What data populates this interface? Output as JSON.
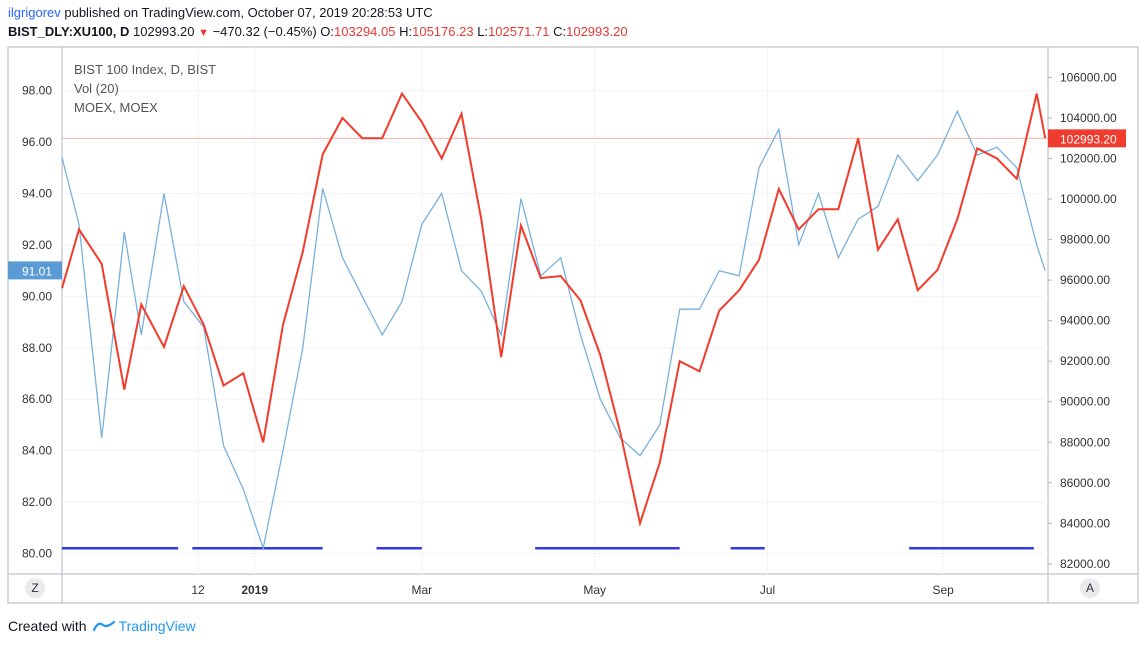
{
  "header": {
    "author": "ilgrigorev",
    "published_text": " published on TradingView.com, October 07, 2019 20:28:53 UTC",
    "symbol": "BIST_DLY:XU100, D",
    "last": "102993.20",
    "change": "−470.32 (−0.45%)",
    "open_label": "O:",
    "open": "103294.05",
    "high_label": "H:",
    "high": "105176.23",
    "low_label": "L:",
    "low": "102571.71",
    "close_label": "C:",
    "close": "102993.20"
  },
  "legend": [
    "BIST 100 Index, D, BIST",
    "Vol (20)",
    "MOEX, MOEX"
  ],
  "footer": {
    "created_with": "Created with",
    "brand": "TradingView"
  },
  "corner_buttons": {
    "left": "Z",
    "right": "A"
  },
  "colors": {
    "bist": "#f23b2a",
    "moex": "#7ab0dc",
    "volume": "#2f39e6",
    "price_line": "#f5b5ad",
    "price_label_bg": "#f03b2f",
    "left_label_bg": "#5b9bd5"
  },
  "chart_data": {
    "type": "line",
    "x_tick_labels": [
      "12",
      "2019",
      "Mar",
      "May",
      "Jul",
      "Sep"
    ],
    "left_axis": {
      "ylim": [
        79.2,
        99.7
      ],
      "ticks": [
        "98.00",
        "96.00",
        "94.00",
        "92.00",
        "90.00",
        "88.00",
        "86.00",
        "84.00",
        "82.00",
        "80.00"
      ],
      "current_label": "91.01"
    },
    "right_axis": {
      "ylim": [
        81500,
        107500
      ],
      "ticks": [
        "106000.00",
        "104000.00",
        "102000.00",
        "100000.00",
        "98000.00",
        "96000.00",
        "94000.00",
        "92000.00",
        "90000.00",
        "88000.00",
        "86000.00",
        "84000.00",
        "82000.00"
      ],
      "current_label": "102993.20"
    },
    "x_range": [
      "2018-10-25",
      "2019-10-08"
    ],
    "series": [
      {
        "name": "BIST 100 Index, D, BIST",
        "axis": "right",
        "x": [
          "2018-10-25",
          "2018-10-31",
          "2018-11-08",
          "2018-11-16",
          "2018-11-22",
          "2018-11-30",
          "2018-12-07",
          "2018-12-14",
          "2018-12-21",
          "2018-12-28",
          "2019-01-04",
          "2019-01-11",
          "2019-01-18",
          "2019-01-25",
          "2019-02-01",
          "2019-02-08",
          "2019-02-15",
          "2019-02-22",
          "2019-03-01",
          "2019-03-08",
          "2019-03-15",
          "2019-03-22",
          "2019-03-29",
          "2019-04-05",
          "2019-04-12",
          "2019-04-19",
          "2019-04-26",
          "2019-05-03",
          "2019-05-10",
          "2019-05-17",
          "2019-05-24",
          "2019-05-31",
          "2019-06-07",
          "2019-06-14",
          "2019-06-21",
          "2019-06-28",
          "2019-07-05",
          "2019-07-12",
          "2019-07-19",
          "2019-07-26",
          "2019-08-02",
          "2019-08-09",
          "2019-08-16",
          "2019-08-23",
          "2019-08-30",
          "2019-09-06",
          "2019-09-13",
          "2019-09-20",
          "2019-09-27",
          "2019-10-04",
          "2019-10-07"
        ],
        "values": [
          95600,
          98500,
          96800,
          90600,
          94800,
          92700,
          95700,
          93800,
          90800,
          91400,
          88000,
          93800,
          97400,
          102200,
          104000,
          103000,
          103000,
          105200,
          103800,
          102000,
          104200,
          99000,
          92200,
          98700,
          96100,
          96200,
          95000,
          92300,
          88500,
          84000,
          87000,
          92000,
          91500,
          94500,
          95500,
          97000,
          100500,
          98500,
          99500,
          99500,
          103000,
          97500,
          99000,
          95500,
          96500,
          99000,
          102500,
          102000,
          101000,
          105200,
          103000
        ]
      },
      {
        "name": "MOEX, MOEX",
        "axis": "left",
        "x": [
          "2018-10-25",
          "2018-10-31",
          "2018-11-08",
          "2018-11-16",
          "2018-11-22",
          "2018-11-30",
          "2018-12-07",
          "2018-12-14",
          "2018-12-21",
          "2018-12-28",
          "2019-01-04",
          "2019-01-11",
          "2019-01-18",
          "2019-01-25",
          "2019-02-01",
          "2019-02-08",
          "2019-02-15",
          "2019-02-22",
          "2019-03-01",
          "2019-03-08",
          "2019-03-15",
          "2019-03-22",
          "2019-03-29",
          "2019-04-05",
          "2019-04-12",
          "2019-04-19",
          "2019-04-26",
          "2019-05-03",
          "2019-05-10",
          "2019-05-17",
          "2019-05-24",
          "2019-05-31",
          "2019-06-07",
          "2019-06-14",
          "2019-06-21",
          "2019-06-28",
          "2019-07-05",
          "2019-07-12",
          "2019-07-19",
          "2019-07-26",
          "2019-08-02",
          "2019-08-09",
          "2019-08-16",
          "2019-08-23",
          "2019-08-30",
          "2019-09-06",
          "2019-09-13",
          "2019-09-20",
          "2019-09-27",
          "2019-10-04",
          "2019-10-07"
        ],
        "values": [
          95.4,
          92.8,
          84.5,
          92.5,
          88.5,
          94.0,
          89.8,
          88.8,
          84.2,
          82.5,
          80.2,
          84.0,
          88.0,
          94.2,
          91.5,
          90.0,
          88.5,
          89.8,
          92.8,
          94.0,
          91.0,
          90.2,
          88.5,
          93.8,
          90.8,
          91.5,
          88.5,
          86.0,
          84.5,
          83.8,
          85.0,
          89.5,
          89.5,
          91.0,
          90.8,
          95.0,
          96.5,
          92.0,
          94.0,
          91.5,
          93.0,
          93.5,
          95.5,
          94.5,
          95.5,
          97.2,
          95.5,
          95.8,
          95.0,
          92.0,
          91.0
        ]
      }
    ],
    "volume_segments": [
      {
        "start": "2018-10-25",
        "end": "2018-12-05",
        "value": 80.2
      },
      {
        "start": "2018-12-10",
        "end": "2019-01-25",
        "value": 80.2
      },
      {
        "start": "2019-02-13",
        "end": "2019-03-01",
        "value": 80.2
      },
      {
        "start": "2019-04-10",
        "end": "2019-05-31",
        "value": 80.2
      },
      {
        "start": "2019-06-18",
        "end": "2019-06-30",
        "value": 80.2
      },
      {
        "start": "2019-08-20",
        "end": "2019-10-03",
        "value": 80.2
      }
    ]
  }
}
